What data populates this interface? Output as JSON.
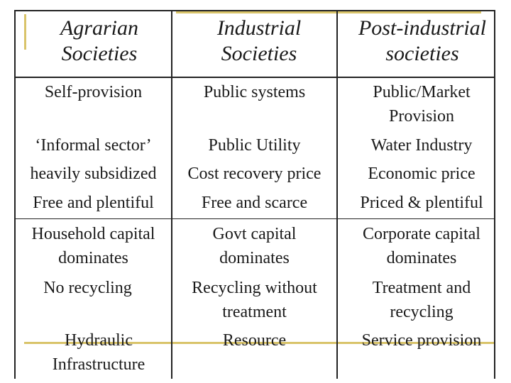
{
  "table": {
    "headers": [
      [
        "Agrarian",
        "Societies"
      ],
      [
        "Industrial",
        "Societies"
      ],
      [
        "Post-industrial",
        "societies"
      ]
    ],
    "rows": [
      [
        [
          "Self-provision"
        ],
        [
          "Public systems"
        ],
        [
          "Public/Market",
          "Provision"
        ]
      ],
      [
        [
          "‘Informal sector’"
        ],
        [
          "Public Utility"
        ],
        [
          "Water Industry"
        ]
      ],
      [
        [
          "heavily subsidized"
        ],
        [
          "Cost recovery price"
        ],
        [
          "Economic price"
        ]
      ],
      [
        [
          "Free and plentiful"
        ],
        [
          "Free and scarce"
        ],
        [
          "Priced & plentiful"
        ]
      ],
      [
        [
          "Household capital",
          "dominates"
        ],
        [
          "Govt capital",
          "dominates"
        ],
        [
          "Corporate capital",
          "dominates"
        ]
      ],
      [
        [
          "No recycling"
        ],
        [
          "Recycling without",
          "treatment"
        ],
        [
          "Treatment and",
          "recycling"
        ]
      ],
      [
        [
          "Hydraulic",
          "Infrastructure"
        ],
        [
          "Resource"
        ],
        [
          "Service provision"
        ]
      ]
    ]
  },
  "colors": {
    "accent": "#d9c46a",
    "grid": "#222222",
    "text": "#1a1a1a"
  }
}
